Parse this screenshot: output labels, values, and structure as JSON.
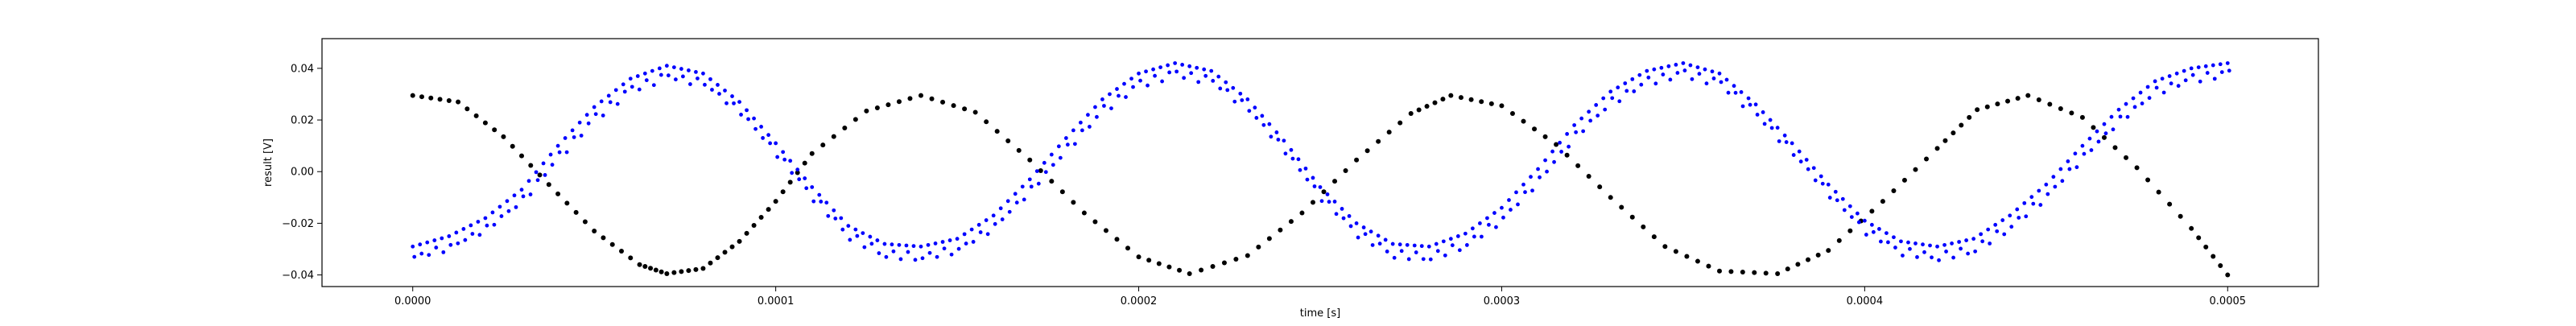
{
  "chart_data": {
    "type": "scatter",
    "title": "",
    "xlabel": "time [s]",
    "ylabel": "result [V]",
    "xlim": [
      -2.5e-05,
      0.000525
    ],
    "ylim": [
      -0.0445,
      0.0515
    ],
    "xticks": [
      0.0,
      0.0001,
      0.0002,
      0.0003,
      0.0004,
      0.0005
    ],
    "xtick_labels": [
      "0.0000",
      "0.0001",
      "0.0002",
      "0.0003",
      "0.0004",
      "0.0005"
    ],
    "yticks": [
      -0.04,
      -0.02,
      0.0,
      0.02,
      0.04
    ],
    "ytick_labels": [
      "−0.04",
      "−0.02",
      "0.00",
      "0.02",
      "0.04"
    ],
    "grid": false,
    "series": [
      {
        "color": "#000000",
        "marker": "filled dot",
        "x": [
          0,
          1.25e-05,
          2.5e-05,
          3.75e-05,
          5e-05,
          6.25e-05,
          7e-05,
          8e-05,
          9e-05,
          0.0001,
          0.00011,
          0.000125,
          0.00014,
          0.000155,
          0.00017,
          0.000185,
          0.0002,
          0.000214,
          0.00023,
          0.000245,
          0.00026,
          0.000275,
          0.000286,
          0.0003,
          0.000315,
          0.00033,
          0.000345,
          0.00036,
          0.000376,
          0.00039,
          0.000405,
          0.00042,
          0.000431,
          0.000445,
          0.00046,
          0.000475,
          0.00049,
          0.0005
        ],
        "y": [
          0.0295,
          0.027,
          0.0135,
          -0.005,
          -0.023,
          -0.036,
          -0.0395,
          -0.0375,
          -0.027,
          -0.0115,
          0.007,
          0.0235,
          0.0295,
          0.023,
          0.0045,
          -0.016,
          -0.033,
          -0.0395,
          -0.0325,
          -0.016,
          0.0045,
          0.0225,
          0.0295,
          0.0255,
          0.0105,
          -0.01,
          -0.029,
          -0.0385,
          -0.0395,
          -0.0305,
          -0.0115,
          0.009,
          0.024,
          0.0295,
          0.021,
          0.0015,
          -0.022,
          -0.04
        ]
      },
      {
        "color": "#0000ff",
        "marker": "small dot",
        "x": [
          0,
          1e-05,
          2e-05,
          3e-05,
          4e-05,
          5e-05,
          6e-05,
          7e-05,
          8e-05,
          9e-05,
          0.0001,
          0.00011,
          0.00012,
          0.00013,
          0.00014,
          0.00015,
          0.00016,
          0.00017,
          0.00018,
          0.00019,
          0.0002,
          0.00021,
          0.00022,
          0.00023,
          0.00024,
          0.00025,
          0.00026,
          0.00027,
          0.00028,
          0.00029,
          0.0003,
          0.00031,
          0.00032,
          0.00033,
          0.00034,
          0.00035,
          0.00036,
          0.00037,
          0.00038,
          0.00039,
          0.0004,
          0.00041,
          0.00042,
          0.00043,
          0.00044,
          0.00045,
          0.00046,
          0.00047,
          0.00048,
          0.00049,
          0.0005
        ],
        "y": [
          -0.029,
          -0.025,
          -0.018,
          -0.007,
          0.01,
          0.025,
          0.036,
          0.041,
          0.038,
          0.027,
          0.011,
          -0.006,
          -0.021,
          -0.028,
          -0.029,
          -0.026,
          -0.017,
          -0.003,
          0.013,
          0.028,
          0.038,
          0.042,
          0.039,
          0.028,
          0.012,
          -0.006,
          -0.02,
          -0.028,
          -0.029,
          -0.024,
          -0.014,
          0.001,
          0.018,
          0.031,
          0.039,
          0.042,
          0.038,
          0.026,
          0.011,
          -0.005,
          -0.019,
          -0.027,
          -0.029,
          -0.026,
          -0.017,
          -0.005,
          0.01,
          0.024,
          0.035,
          0.04,
          0.042
        ]
      }
    ]
  }
}
